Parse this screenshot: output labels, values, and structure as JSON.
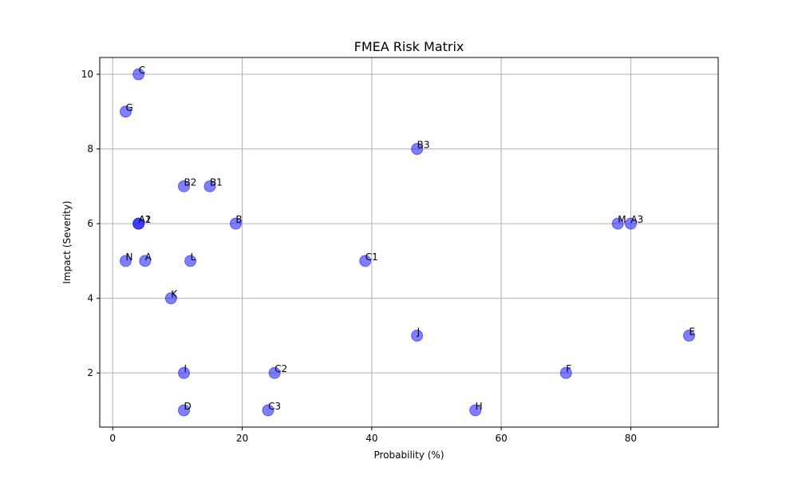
{
  "chart_data": {
    "type": "scatter",
    "title": "FMEA Risk Matrix",
    "xlabel": "Probability (%)",
    "ylabel": "Impact (Severity)",
    "xlim": [
      -2,
      93.5
    ],
    "ylim": [
      0.55,
      10.45
    ],
    "xticks": [
      0,
      20,
      40,
      60,
      80
    ],
    "yticks": [
      2,
      4,
      6,
      8,
      10
    ],
    "grid": true,
    "marker_color": "#0000ff",
    "marker_opacity": 0.5,
    "points": [
      {
        "label": "C",
        "x": 4,
        "y": 10
      },
      {
        "label": "G",
        "x": 2,
        "y": 9
      },
      {
        "label": "B3",
        "x": 47,
        "y": 8
      },
      {
        "label": "B2",
        "x": 11,
        "y": 7
      },
      {
        "label": "B1",
        "x": 15,
        "y": 7
      },
      {
        "label": "A1",
        "x": 4,
        "y": 6
      },
      {
        "label": "A2",
        "x": 4,
        "y": 6
      },
      {
        "label": "B",
        "x": 19,
        "y": 6
      },
      {
        "label": "M",
        "x": 78,
        "y": 6
      },
      {
        "label": "A3",
        "x": 80,
        "y": 6
      },
      {
        "label": "N",
        "x": 2,
        "y": 5
      },
      {
        "label": "A",
        "x": 5,
        "y": 5
      },
      {
        "label": "L",
        "x": 12,
        "y": 5
      },
      {
        "label": "C1",
        "x": 39,
        "y": 5
      },
      {
        "label": "K",
        "x": 9,
        "y": 4
      },
      {
        "label": "J",
        "x": 47,
        "y": 3
      },
      {
        "label": "E",
        "x": 89,
        "y": 3
      },
      {
        "label": "I",
        "x": 11,
        "y": 2
      },
      {
        "label": "C2",
        "x": 25,
        "y": 2
      },
      {
        "label": "F",
        "x": 70,
        "y": 2
      },
      {
        "label": "D",
        "x": 11,
        "y": 1
      },
      {
        "label": "C3",
        "x": 24,
        "y": 1
      },
      {
        "label": "H",
        "x": 56,
        "y": 1
      }
    ]
  }
}
